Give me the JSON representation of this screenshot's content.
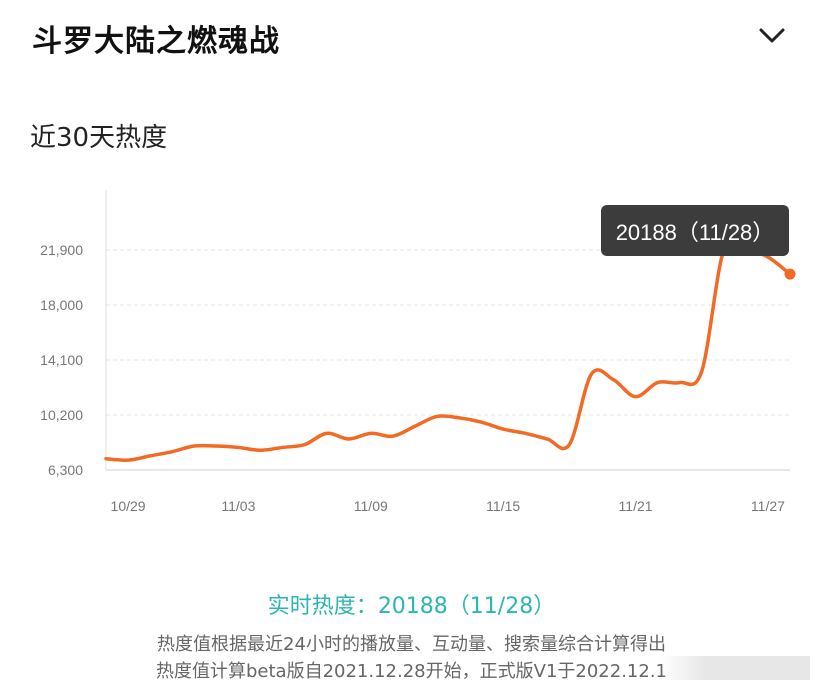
{
  "header": {
    "title": "斗罗大陆之燃魂战",
    "toggle_icon": "chevron-down-icon"
  },
  "section_title": "近30天热度",
  "tooltip": {
    "text": "20188（11/28）"
  },
  "realtime": {
    "label": "实时热度：",
    "value": "20188（11/28）"
  },
  "notes": {
    "line1": "热度值根据最近24小时的播放量、互动量、搜索量综合计算得出",
    "line2": "热度值计算beta版自2021.12.28开始，正式版V1于2022.12.1"
  },
  "colors": {
    "line": "#f26a24",
    "accent_text": "#2bb6b2",
    "tooltip_bg": "#3c3c3c",
    "grid": "#e6e6e6"
  },
  "chart_data": {
    "type": "line",
    "title": "近30天热度",
    "xlabel": "",
    "ylabel": "",
    "x_ticks": [
      "10/29",
      "11/03",
      "11/09",
      "11/15",
      "11/21",
      "11/27"
    ],
    "y_ticks": [
      "6,300",
      "10,200",
      "14,100",
      "18,000",
      "21,900"
    ],
    "ylim": [
      6300,
      21900
    ],
    "grid": true,
    "x": [
      "10/28",
      "10/29",
      "10/30",
      "10/31",
      "11/01",
      "11/02",
      "11/03",
      "11/04",
      "11/05",
      "11/06",
      "11/07",
      "11/08",
      "11/09",
      "11/10",
      "11/11",
      "11/12",
      "11/13",
      "11/14",
      "11/15",
      "11/16",
      "11/17",
      "11/18",
      "11/19",
      "11/20",
      "11/21",
      "11/22",
      "11/23",
      "11/24",
      "11/25",
      "11/26",
      "11/27",
      "11/28"
    ],
    "values": [
      7100,
      7000,
      7300,
      7600,
      8000,
      8000,
      7900,
      7700,
      7900,
      8100,
      8900,
      8500,
      8900,
      8700,
      9400,
      10100,
      10000,
      9700,
      9200,
      8900,
      8500,
      8100,
      13100,
      12700,
      11500,
      12500,
      12500,
      13300,
      21900,
      21900,
      21400,
      20188
    ],
    "highlight": {
      "x": "11/28",
      "value": 20188
    }
  }
}
